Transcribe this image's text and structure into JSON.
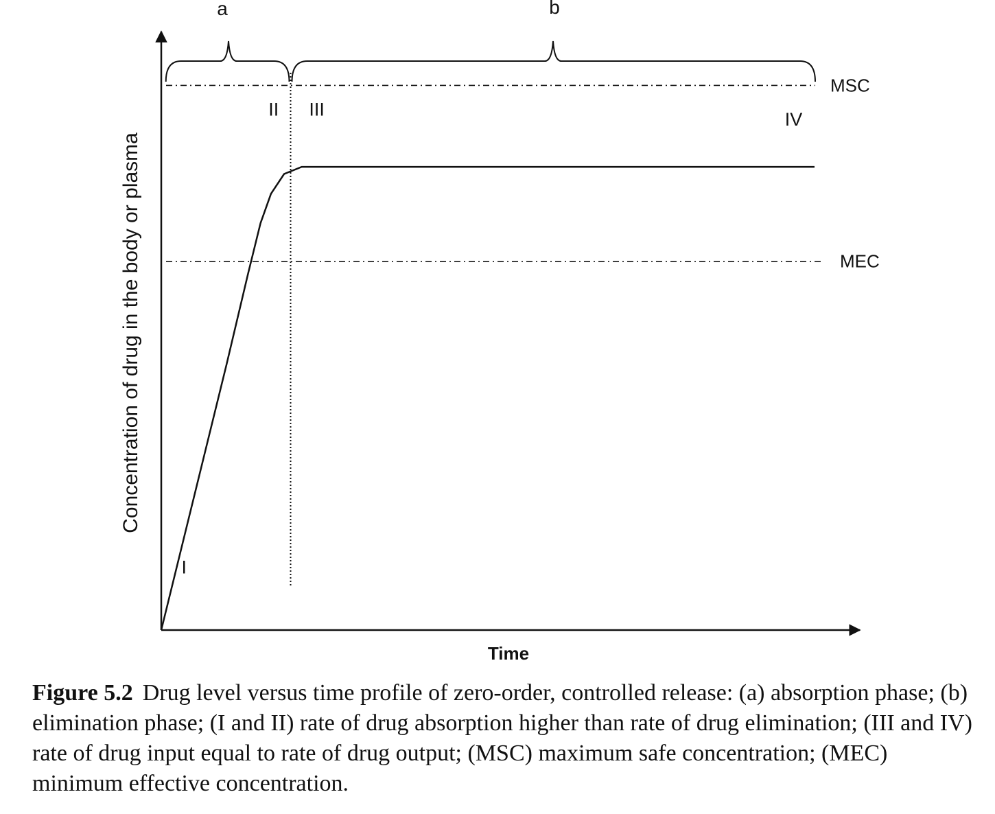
{
  "chart_data": {
    "type": "line",
    "xlabel": "Time",
    "ylabel": "Concentration of  drug in the body or plasma",
    "xlim": [
      0,
      1
    ],
    "ylim": [
      0,
      1
    ],
    "series": [
      {
        "x": [
          0,
          0.05,
          0.1,
          0.133,
          0.152,
          0.168,
          0.188,
          0.215,
          1.0
        ],
        "values": [
          0,
          0.222,
          0.444,
          0.596,
          0.68,
          0.729,
          0.762,
          0.774,
          0.774
        ]
      }
    ],
    "reference_lines": [
      {
        "label": "MSC",
        "y": 0.91
      },
      {
        "label": "MEC",
        "y": 0.616
      }
    ],
    "divider_x": 0.198,
    "phases": [
      {
        "label": "a",
        "x_start": 0.006,
        "x_end": 0.198
      },
      {
        "label": "b",
        "x_start": 0.198,
        "x_end": 1.0
      }
    ],
    "region_labels": [
      {
        "text": "I",
        "x": 0.035,
        "y": 0.105
      },
      {
        "text": "II",
        "x": 0.172,
        "y": 0.87
      },
      {
        "text": "III",
        "x": 0.238,
        "y": 0.87
      },
      {
        "text": "IV",
        "x": 0.968,
        "y": 0.853
      }
    ]
  },
  "caption": {
    "label": "Figure 5.2",
    "text": "Drug level versus time profile of zero-order, controlled release: (a) absorption phase; (b) elimination phase; (I and II) rate of drug absorption higher than rate of drug elimination; (III and IV) rate of drug input equal to rate of drug output; (MSC) maximum safe concentration; (MEC) minimum effective concentration."
  }
}
